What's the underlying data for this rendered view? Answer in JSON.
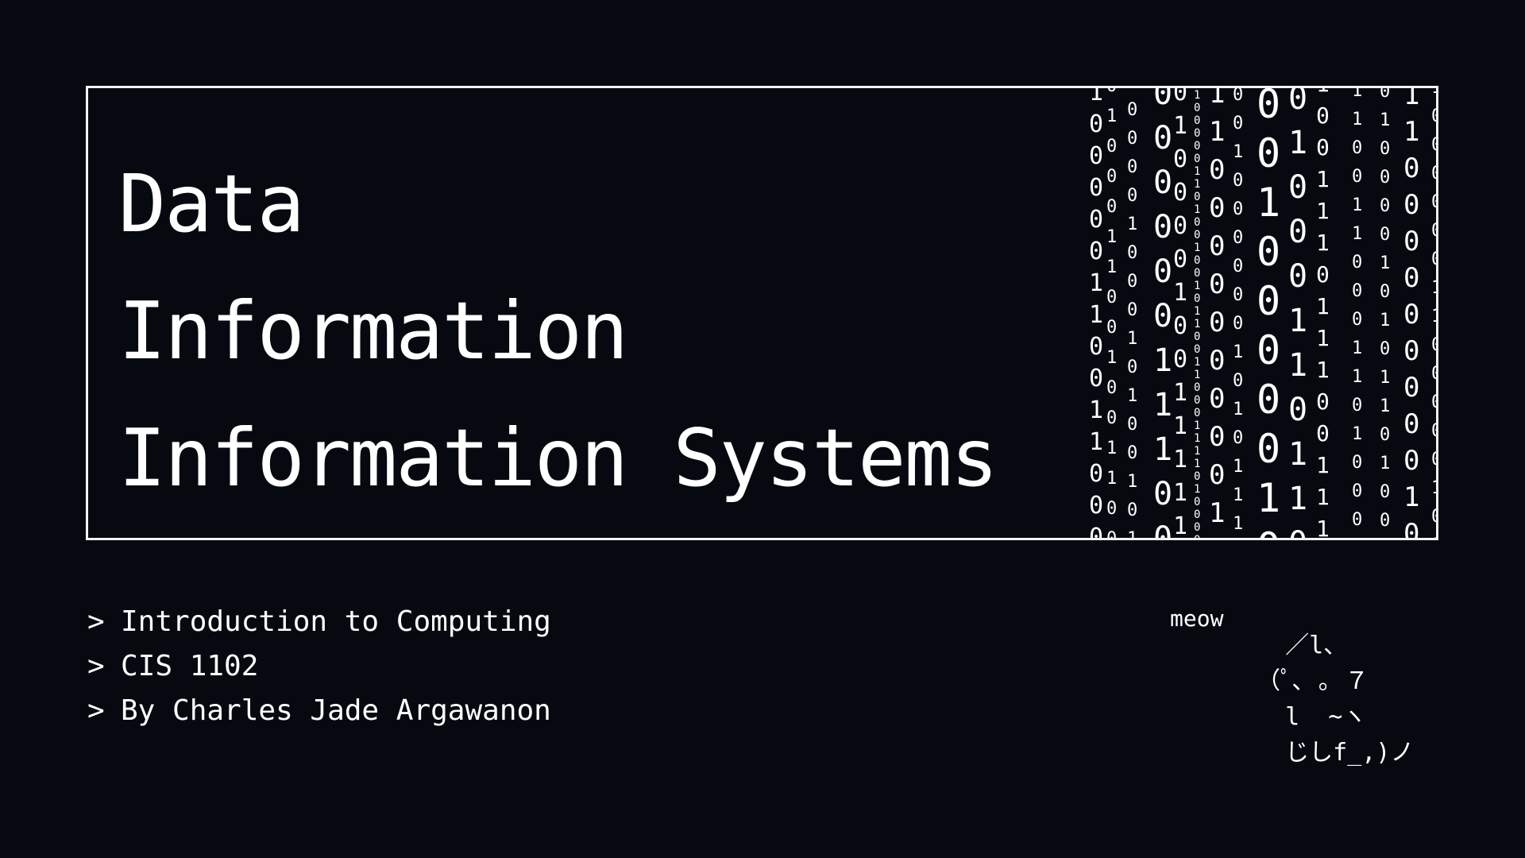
{
  "title": {
    "lines": [
      "Data",
      "Information",
      "Information Systems"
    ]
  },
  "subtitle": {
    "prefix": ">",
    "items": [
      "Introduction to Computing",
      "CIS 1102",
      "By Charles Jade Argawanon"
    ]
  },
  "cat": {
    "caption": "meow",
    "art": "  ／l、\n（ﾟ､ ｡ ７\n  l  ~ヽ\n  じしf_,)ノ"
  },
  "binary_rain": {
    "description": "decorative",
    "characters": [
      "0",
      "1"
    ]
  },
  "colors": {
    "background": "#060a10",
    "foreground": "#ffffff",
    "border": "#f2f2f2"
  }
}
